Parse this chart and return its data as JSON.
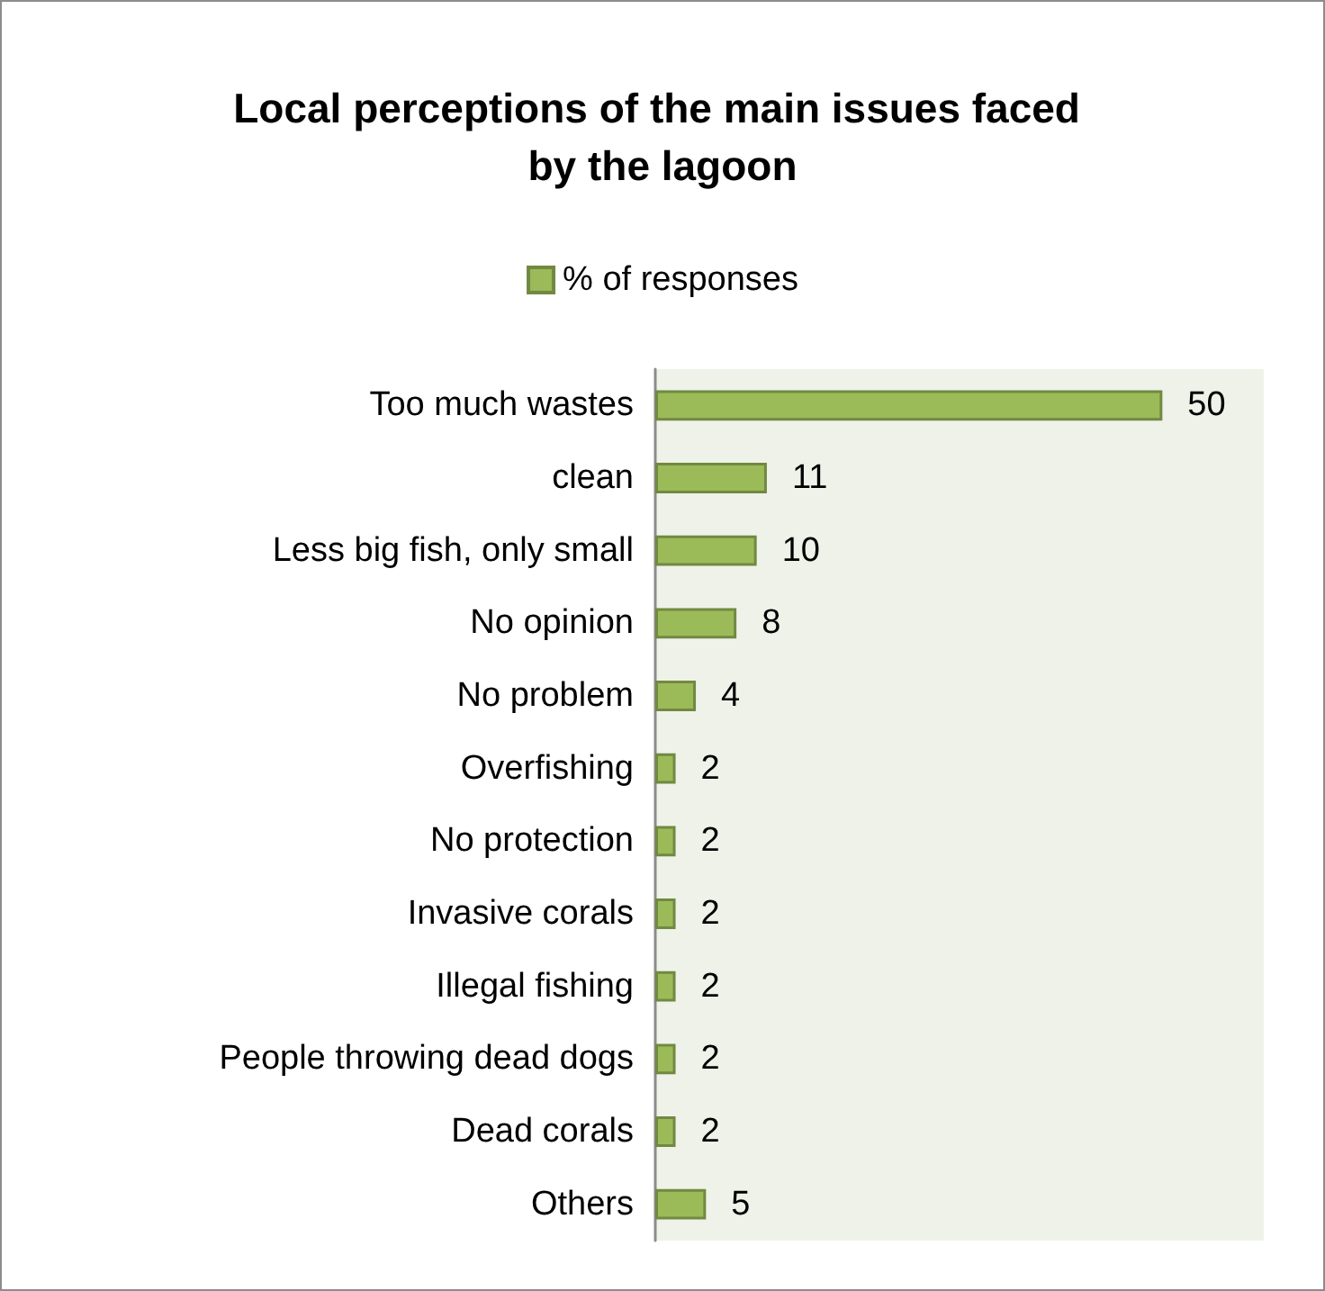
{
  "chart_data": {
    "type": "bar",
    "orientation": "horizontal",
    "title": "Local perceptions of the main issues faced by the lagoon",
    "categories": [
      "Too much wastes",
      "clean",
      "Less big fish, only small",
      "No opinion",
      "No problem",
      "Overfishing",
      "No protection",
      "Invasive corals",
      "Illegal fishing",
      "People throwing dead dogs",
      "Dead corals",
      "Others"
    ],
    "series": [
      {
        "name": "% of responses",
        "color": "#9bbb59",
        "values": [
          50,
          11,
          10,
          8,
          4,
          2,
          2,
          2,
          2,
          2,
          2,
          5
        ]
      }
    ],
    "xlim": [
      0,
      60
    ],
    "data_labels": true,
    "legend": "top",
    "grid": false,
    "tick_labels": "y"
  }
}
